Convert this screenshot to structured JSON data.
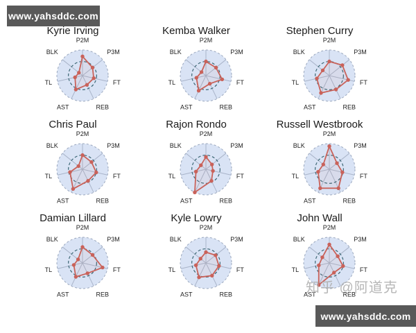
{
  "watermarks": {
    "top_left": "www.yahsddc.com",
    "bottom_right": "www.yahsddc.com",
    "zhihu": "知乎 @阿道克"
  },
  "colors": {
    "watermark_bar_bg": "#595959",
    "watermark_text": "#ffffff",
    "radar_fill": "#d9e3f5",
    "spoke": "#a9b4c9",
    "outer_ring": "#9aa7bd",
    "inner_ring": "#3d6775",
    "series_line": "#c9625a",
    "title_text": "#1a1a1a",
    "label_text": "#222222",
    "zhihu_text": "#afafaf"
  },
  "chart_data": {
    "type": "radar",
    "layout": "3x3 small multiples",
    "categories": [
      "P2M",
      "P3M",
      "FT",
      "REB",
      "AST",
      "TL",
      "BLK"
    ],
    "scale": [
      0,
      1
    ],
    "inner_dashed_ring_at": 0.55,
    "grid": "circular, dashed outer edge, 7 radial spokes",
    "legend": "none",
    "series": [
      {
        "name": "Kyrie Irving",
        "values": [
          0.75,
          0.5,
          0.45,
          0.4,
          0.6,
          0.3,
          0.18
        ]
      },
      {
        "name": "Kemba Walker",
        "values": [
          0.55,
          0.5,
          0.65,
          0.35,
          0.65,
          0.38,
          0.22
        ]
      },
      {
        "name": "Stephen Curry",
        "values": [
          0.55,
          0.65,
          0.75,
          0.6,
          0.75,
          0.5,
          0.33
        ]
      },
      {
        "name": "Chris Paul",
        "values": [
          0.55,
          0.45,
          0.55,
          0.5,
          0.85,
          0.5,
          0.2
        ]
      },
      {
        "name": "Rajon Rondo",
        "values": [
          0.48,
          0.3,
          0.28,
          0.5,
          1.0,
          0.4,
          0.25
        ]
      },
      {
        "name": "Russell Westbrook",
        "values": [
          0.9,
          0.38,
          0.52,
          0.82,
          0.82,
          0.45,
          0.3
        ]
      },
      {
        "name": "Damian Lillard",
        "values": [
          0.62,
          0.5,
          0.8,
          0.45,
          0.6,
          0.35,
          0.22
        ]
      },
      {
        "name": "Kyle Lowry",
        "values": [
          0.42,
          0.48,
          0.52,
          0.55,
          0.62,
          0.4,
          0.27
        ]
      },
      {
        "name": "John Wall",
        "values": [
          0.72,
          0.42,
          0.55,
          0.42,
          0.95,
          0.42,
          0.35
        ]
      }
    ]
  }
}
